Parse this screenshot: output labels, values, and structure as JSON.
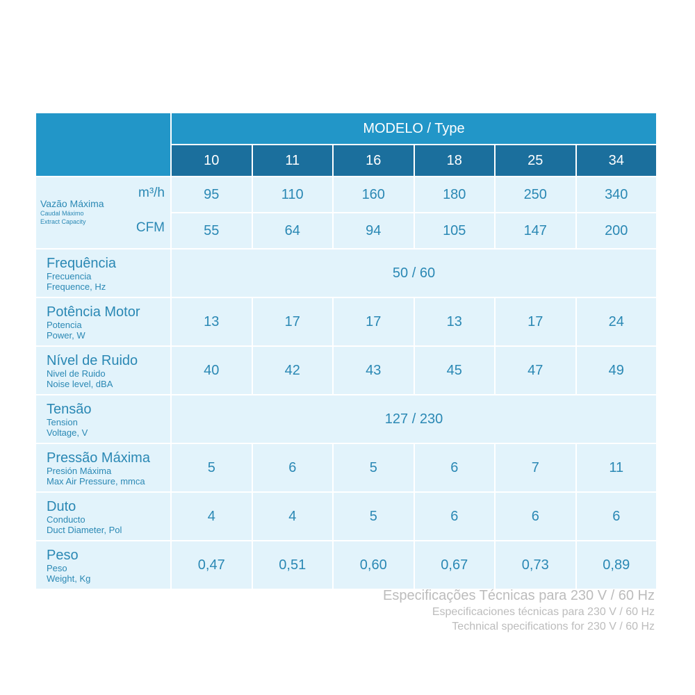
{
  "header": {
    "modelo": "MODELO / Type",
    "models": [
      "10",
      "11",
      "16",
      "18",
      "25",
      "34"
    ]
  },
  "airflow": {
    "label": "Vazão Máxima",
    "sub1": "Caudal Máximo",
    "sub2": "Extract Capacity",
    "unit_m3h": "m³/h",
    "unit_cfm": "CFM",
    "m3h": [
      "95",
      "110",
      "160",
      "180",
      "250",
      "340"
    ],
    "cfm": [
      "55",
      "64",
      "94",
      "105",
      "147",
      "200"
    ]
  },
  "rows": [
    {
      "name": "frequencia",
      "main": "Frequência",
      "sub1": "Frecuencia",
      "sub2": "Frequence, Hz",
      "span": "50 / 60"
    },
    {
      "name": "potencia",
      "main": "Potência Motor",
      "sub1": "Potencia",
      "sub2": "Power, W",
      "values": [
        "13",
        "17",
        "17",
        "13",
        "17",
        "24"
      ]
    },
    {
      "name": "ruido",
      "main": "Nível de Ruido",
      "sub1": "Nivel de Ruido",
      "sub2": "Noise level, dBA",
      "values": [
        "40",
        "42",
        "43",
        "45",
        "47",
        "49"
      ]
    },
    {
      "name": "tensao",
      "main": "Tensão",
      "sub1": "Tension",
      "sub2": "Voltage, V",
      "span": "127 / 230"
    },
    {
      "name": "pressao",
      "main": "Pressão Máxima",
      "sub1": "Presión Máxima",
      "sub2": "Max Air Pressure, mmca",
      "values": [
        "5",
        "6",
        "5",
        "6",
        "7",
        "11"
      ]
    },
    {
      "name": "duto",
      "main": "Duto",
      "sub1": "Conducto",
      "sub2": "Duct Diameter, Pol",
      "values": [
        "4",
        "4",
        "5",
        "6",
        "6",
        "6"
      ]
    },
    {
      "name": "peso",
      "main": "Peso",
      "sub1": "Peso",
      "sub2": "Weight, Kg",
      "values": [
        "0,47",
        "0,51",
        "0,60",
        "0,67",
        "0,73",
        "0,89"
      ]
    }
  ],
  "footnote": {
    "line1": "Especificações Técnicas para 230 V / 60 Hz",
    "line2": "Especificaciones técnicas para 230 V / 60 Hz",
    "line3": "Technical specifications for 230 V / 60 Hz"
  }
}
